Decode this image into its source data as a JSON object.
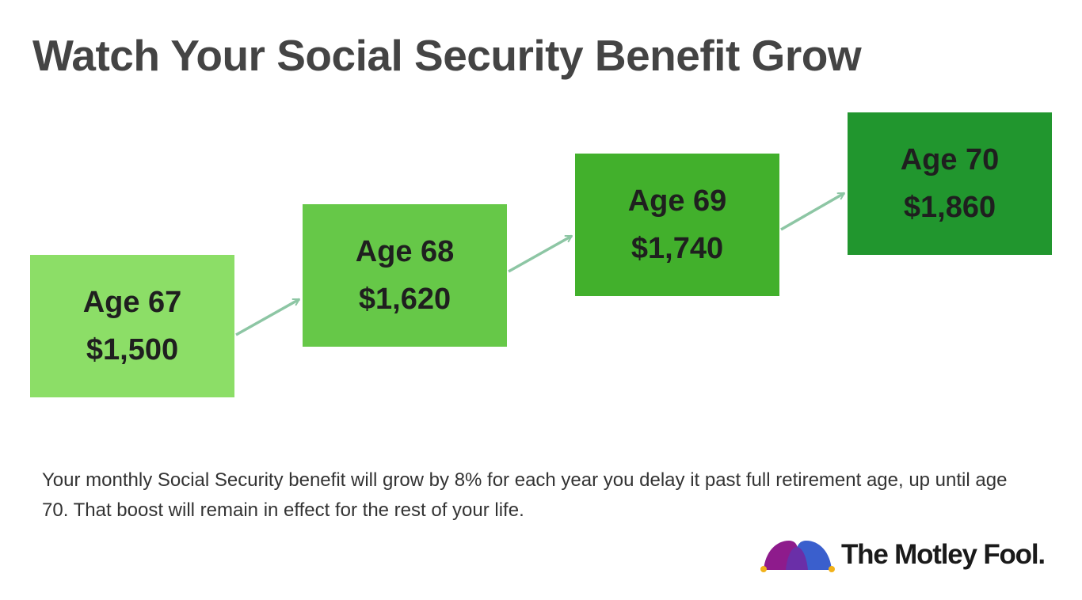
{
  "title": "Watch Your Social Security Benefit Grow",
  "steps": [
    {
      "age": "Age 67",
      "amount": "$1,500",
      "color": "#8cde67"
    },
    {
      "age": "Age 68",
      "amount": "$1,620",
      "color": "#66c848"
    },
    {
      "age": "Age 69",
      "amount": "$1,740",
      "color": "#42b02c"
    },
    {
      "age": "Age 70",
      "amount": "$1,860",
      "color": "#21962e"
    }
  ],
  "arrow_color": "#8dc6a4",
  "caption": "Your monthly Social Security benefit will grow by 8% for each year you delay it past full retirement age, up until age 70. That boost will remain in effect for the rest of your life.",
  "logo": {
    "text": "The Motley Fool.",
    "icon": "jester-hat-icon",
    "colors": {
      "purple": "#8e1b8c",
      "blue": "#3a5fcd",
      "gold": "#f2b21a"
    }
  }
}
